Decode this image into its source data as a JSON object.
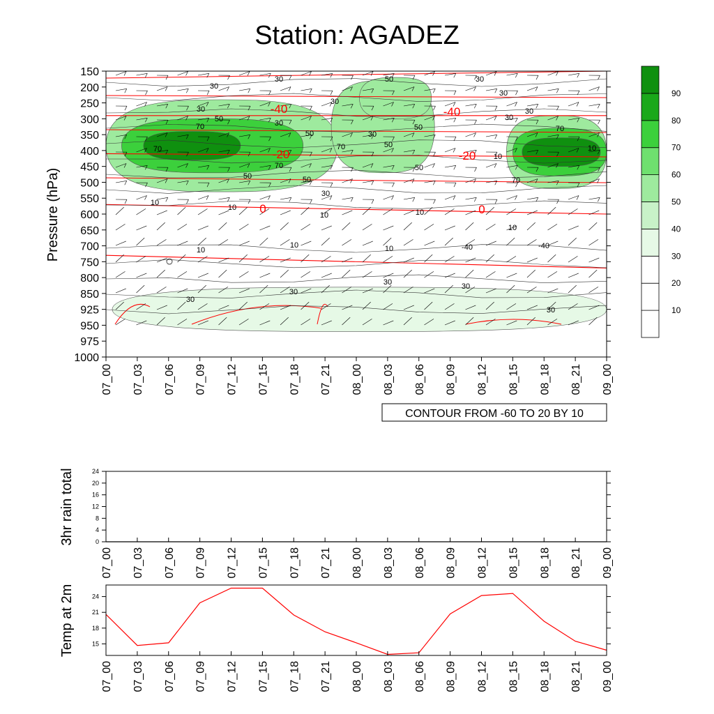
{
  "figure": {
    "title": "Station: AGADEZ",
    "contour_note": "CONTOUR FROM -60 TO 20 BY 10"
  },
  "chart_data": [
    {
      "type": "heatmap",
      "title": "Station: AGADEZ",
      "ylabel": "Pressure (hPa)",
      "x": [
        "07_00",
        "07_03",
        "07_06",
        "07_09",
        "07_12",
        "07_15",
        "07_18",
        "07_21",
        "08_00",
        "08_03",
        "08_06",
        "08_09",
        "08_12",
        "08_15",
        "08_18",
        "08_21",
        "09_00"
      ],
      "pressure_levels": [
        150,
        200,
        250,
        300,
        350,
        400,
        450,
        500,
        550,
        600,
        650,
        700,
        750,
        800,
        850,
        925,
        950,
        975,
        1000
      ],
      "colorbar_levels": [
        10,
        20,
        30,
        40,
        50,
        60,
        70,
        80,
        90
      ],
      "colorbar_colors": [
        "#ffffff",
        "#ffffff",
        "#ffffff",
        "#e6f9e6",
        "#c8f2c8",
        "#9eea9e",
        "#6fe06f",
        "#3cd03c",
        "#1aa81a",
        "#0f900f"
      ],
      "green_regions": [
        {
          "value": 50,
          "x": [
            0.0,
            7.4
          ],
          "p": [
            240,
            530
          ]
        },
        {
          "value": 70,
          "x": [
            0.5,
            6.3
          ],
          "p": [
            300,
            470
          ]
        },
        {
          "value": 90,
          "x": [
            1.2,
            4.3
          ],
          "p": [
            340,
            430
          ]
        },
        {
          "value": 50,
          "x": [
            7.2,
            10.5
          ],
          "p": [
            180,
            470
          ]
        },
        {
          "value": 50,
          "x": [
            8.1,
            10.4
          ],
          "p": [
            170,
            300
          ]
        },
        {
          "value": 50,
          "x": [
            12.8,
            16.0
          ],
          "p": [
            290,
            520
          ]
        },
        {
          "value": 70,
          "x": [
            13.0,
            16.0
          ],
          "p": [
            330,
            480
          ]
        },
        {
          "value": 90,
          "x": [
            13.3,
            15.8
          ],
          "p": [
            360,
            450
          ]
        },
        {
          "value": 30,
          "x": [
            0.2,
            16.0
          ],
          "p": [
            830,
            960
          ]
        }
      ],
      "temperature_contours": [
        {
          "label": "-40",
          "p_start": 290,
          "p_end": 290
        },
        {
          "label": "-20",
          "p_start": 410,
          "p_end": 420
        },
        {
          "label": "0",
          "p_start": 570,
          "p_end": 600
        },
        {
          "label": "",
          "p_start": 730,
          "p_end": 770
        }
      ],
      "contour_labels": [
        "30",
        "30",
        "30",
        "30",
        "30",
        "30",
        "30",
        "30",
        "30",
        "30",
        "30",
        "50",
        "50",
        "50",
        "50",
        "50",
        "50",
        "50",
        "50",
        "70",
        "70",
        "70",
        "70",
        "70",
        "70",
        "10",
        "10",
        "10",
        "10",
        "10",
        "10",
        "10",
        "10",
        "10",
        "10",
        "-40",
        "-40",
        "-20",
        "-20",
        "0",
        "0"
      ]
    },
    {
      "type": "line",
      "ylabel": "3hr rain total",
      "x": [
        "07_00",
        "07_03",
        "07_06",
        "07_09",
        "07_12",
        "07_15",
        "07_18",
        "07_21",
        "08_00",
        "08_03",
        "08_06",
        "08_09",
        "08_12",
        "08_15",
        "08_18",
        "08_21",
        "09_00"
      ],
      "yticks": [
        0,
        4,
        8,
        12,
        16,
        20,
        24
      ],
      "ylim": [
        0,
        24
      ],
      "values": [
        0,
        0,
        0,
        0,
        0,
        0,
        0,
        0,
        0,
        0,
        0,
        0,
        0,
        0,
        0,
        0,
        0
      ]
    },
    {
      "type": "line",
      "ylabel": "Temp at 2m",
      "x": [
        "07_00",
        "07_03",
        "07_06",
        "07_09",
        "07_12",
        "07_15",
        "07_18",
        "07_21",
        "08_00",
        "08_03",
        "08_06",
        "08_09",
        "08_12",
        "08_15",
        "08_18",
        "08_21",
        "09_00"
      ],
      "yticks": [
        15,
        18,
        21,
        24
      ],
      "ylim": [
        12.8,
        26.2
      ],
      "values": [
        20.6,
        14.7,
        15.2,
        22.8,
        25.6,
        25.6,
        20.5,
        17.3,
        15.2,
        13.0,
        13.3,
        20.7,
        24.2,
        24.6,
        19.3,
        15.5,
        13.8
      ],
      "color": "#ff0000"
    }
  ]
}
